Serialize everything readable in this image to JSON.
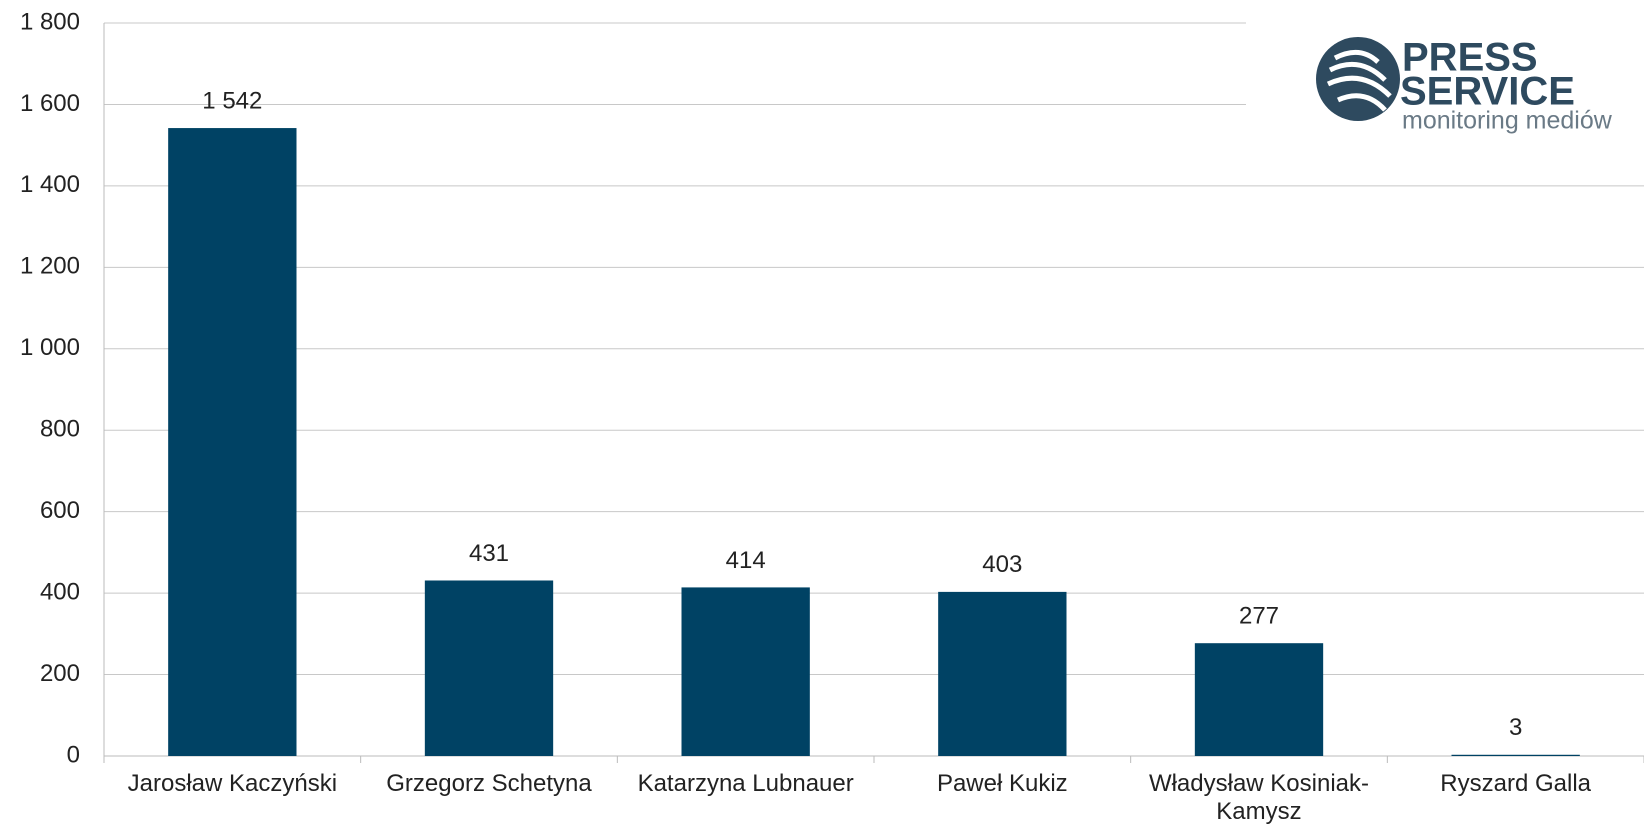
{
  "chart_data": {
    "type": "bar",
    "categories": [
      "Jarosław Kaczyński",
      "Grzegorz Schetyna",
      "Katarzyna Lubnauer",
      "Paweł Kukiz",
      "Władysław Kosiniak-Kamysz",
      "Ryszard Galla"
    ],
    "values": [
      1542,
      431,
      414,
      403,
      277,
      3
    ],
    "value_labels": [
      "1 542",
      "431",
      "414",
      "403",
      "277",
      "3"
    ],
    "color": "#004264",
    "ylim": [
      0,
      1800
    ],
    "yticks": [
      0,
      200,
      400,
      600,
      800,
      {
        "value": 1000,
        "label": "1 000"
      },
      {
        "value": 1200,
        "label": "1 200"
      },
      {
        "value": 1400,
        "label": "1 400"
      },
      {
        "value": 1600,
        "label": "1 600"
      },
      {
        "value": 1800,
        "label": "1 800"
      }
    ],
    "grid": true
  },
  "logo": {
    "line1": "PRESS",
    "line2": "SERVICE",
    "tagline": "monitoring mediów"
  }
}
